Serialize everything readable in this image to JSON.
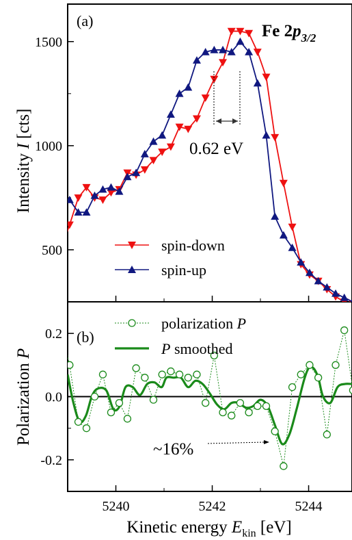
{
  "figure": {
    "panel_a_label": "(a)",
    "panel_b_label": "(b)",
    "title_main": "Fe 2",
    "title_italic": "p",
    "title_sub": "3/2",
    "ylabel_a_prefix": "Intensity ",
    "ylabel_a_var": "I",
    "ylabel_a_unit": " [cts]",
    "ylabel_b_prefix": "Polarization ",
    "ylabel_b_var": "P",
    "xlabel_prefix": "Kinetic energy ",
    "xlabel_var": "E",
    "xlabel_sub": "kin",
    "xlabel_unit": " [eV]",
    "annotation_shift": "0.62 eV",
    "annotation_pol": "~16%",
    "legend_a": [
      "spin-down",
      "spin-up"
    ],
    "legend_b_1_prefix": "polarization ",
    "legend_b_1_var": "P",
    "legend_b_2_var": "P",
    "legend_b_2_suffix": " smoothed",
    "colors": {
      "spin_down": "#ee1111",
      "spin_up": "#101880",
      "polarization": "#1a8a1a"
    }
  },
  "chart_data": [
    {
      "type": "line",
      "panel": "a",
      "xlim": [
        5239.0,
        5244.9
      ],
      "ylim": [
        250,
        1680
      ],
      "yticks": [
        500,
        1000,
        1500
      ],
      "ytick_labels": [
        "500",
        "1000",
        "1500"
      ],
      "series": [
        {
          "name": "spin-down",
          "marker": "triangle-down",
          "x": [
            5238.82,
            5239.04,
            5239.22,
            5239.39,
            5239.56,
            5239.73,
            5239.9,
            5240.07,
            5240.24,
            5240.42,
            5240.6,
            5240.78,
            5240.96,
            5241.14,
            5241.32,
            5241.5,
            5241.68,
            5241.86,
            5242.04,
            5242.22,
            5242.4,
            5242.58,
            5242.76,
            5242.94,
            5243.12,
            5243.3,
            5243.48,
            5243.66,
            5243.84,
            5244.02,
            5244.2,
            5244.38,
            5244.56,
            5244.74,
            5244.92
          ],
          "y": [
            470,
            620,
            750,
            800,
            750,
            740,
            775,
            790,
            870,
            860,
            885,
            930,
            970,
            995,
            1090,
            1080,
            1130,
            1230,
            1320,
            1400,
            1550,
            1550,
            1540,
            1450,
            1330,
            1040,
            820,
            610,
            430,
            380,
            350,
            310,
            275,
            250,
            240
          ]
        },
        {
          "name": "spin-up",
          "marker": "triangle-up",
          "x": [
            5238.82,
            5239.04,
            5239.22,
            5239.39,
            5239.56,
            5239.73,
            5239.9,
            5240.07,
            5240.24,
            5240.42,
            5240.6,
            5240.78,
            5240.96,
            5241.14,
            5241.32,
            5241.5,
            5241.68,
            5241.86,
            5242.04,
            5242.22,
            5242.4,
            5242.58,
            5242.76,
            5242.94,
            5243.12,
            5243.3,
            5243.48,
            5243.66,
            5243.84,
            5244.02,
            5244.2,
            5244.38,
            5244.56,
            5244.74,
            5244.92
          ],
          "y": [
            760,
            740,
            680,
            680,
            760,
            790,
            800,
            780,
            850,
            870,
            960,
            1020,
            1050,
            1150,
            1250,
            1280,
            1410,
            1450,
            1460,
            1460,
            1450,
            1500,
            1450,
            1300,
            1050,
            660,
            570,
            510,
            440,
            390,
            350,
            320,
            290,
            270,
            250
          ]
        }
      ]
    },
    {
      "type": "line",
      "panel": "b",
      "xlim": [
        5239.0,
        5244.9
      ],
      "ylim": [
        -0.3,
        0.3
      ],
      "xticks": [
        5240,
        5242,
        5244
      ],
      "xtick_labels": [
        "5240",
        "5242",
        "5244"
      ],
      "yticks": [
        -0.2,
        0.0,
        0.2
      ],
      "ytick_labels": [
        "-0.2",
        "0.0",
        "0.2"
      ],
      "series": [
        {
          "name": "polarization P",
          "style": "dotted-open-circle",
          "x": [
            5238.82,
            5239.04,
            5239.22,
            5239.39,
            5239.56,
            5239.73,
            5239.9,
            5240.07,
            5240.24,
            5240.42,
            5240.6,
            5240.78,
            5240.96,
            5241.14,
            5241.32,
            5241.5,
            5241.68,
            5241.86,
            5242.04,
            5242.22,
            5242.4,
            5242.58,
            5242.76,
            5242.94,
            5243.12,
            5243.3,
            5243.48,
            5243.66,
            5243.84,
            5244.02,
            5244.2,
            5244.38,
            5244.56,
            5244.74,
            5244.92
          ],
          "y": [
            0.25,
            0.1,
            -0.08,
            -0.1,
            0.0,
            0.07,
            -0.05,
            -0.02,
            -0.07,
            0.09,
            0.06,
            -0.01,
            0.07,
            0.08,
            0.07,
            0.06,
            0.07,
            -0.02,
            0.13,
            -0.05,
            -0.06,
            -0.02,
            -0.05,
            -0.03,
            -0.03,
            -0.11,
            -0.22,
            0.03,
            0.07,
            0.1,
            0.06,
            -0.12,
            0.1,
            0.21,
            0.02
          ]
        },
        {
          "name": "P smoothed",
          "style": "solid-thick",
          "x": [
            5239.0,
            5239.12,
            5239.25,
            5239.38,
            5239.5,
            5239.62,
            5239.8,
            5239.95,
            5240.08,
            5240.2,
            5240.35,
            5240.5,
            5240.65,
            5240.8,
            5240.95,
            5241.05,
            5241.2,
            5241.35,
            5241.5,
            5241.65,
            5241.8,
            5241.95,
            5242.1,
            5242.25,
            5242.4,
            5242.55,
            5242.7,
            5242.85,
            5243.0,
            5243.15,
            5243.3,
            5243.45,
            5243.6,
            5243.75,
            5243.9,
            5244.0,
            5244.1,
            5244.2,
            5244.3,
            5244.45,
            5244.6,
            5244.75,
            5244.9
          ],
          "y": [
            0.07,
            -0.02,
            -0.08,
            -0.06,
            0.0,
            0.025,
            0.02,
            -0.04,
            -0.03,
            0.03,
            0.03,
            0.005,
            0.04,
            0.045,
            0.03,
            0.06,
            0.06,
            0.06,
            0.03,
            0.05,
            0.04,
            0.01,
            -0.025,
            -0.04,
            -0.02,
            -0.02,
            -0.035,
            -0.03,
            -0.01,
            -0.03,
            -0.09,
            -0.15,
            -0.12,
            -0.04,
            0.05,
            0.09,
            0.09,
            0.06,
            0.0,
            -0.02,
            0.03,
            0.04,
            0.04
          ]
        }
      ]
    }
  ]
}
